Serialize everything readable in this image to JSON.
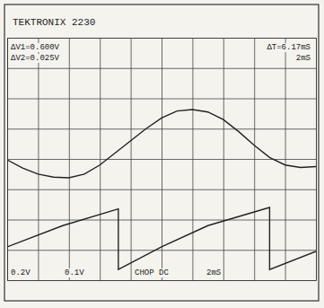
{
  "chart_data": {
    "type": "line",
    "title": "TEKTRONIX 2230",
    "annotations": [
      "ΔV1=0.600V",
      "ΔV2=0.025V",
      "ΔT=6.17mS",
      "2mS",
      "0.2V",
      "0.1V",
      "CHOP DC",
      "2mS"
    ],
    "xlim": [
      0,
      10
    ],
    "ylim": [
      0,
      8
    ],
    "xticks": [
      0,
      1,
      2,
      3,
      4,
      5,
      6,
      7,
      8,
      9,
      10
    ],
    "yticks": [
      0,
      1,
      2,
      3,
      4,
      5,
      6,
      7,
      8
    ],
    "grid": true,
    "tick_labels": false,
    "series": [
      {
        "color": "#222222",
        "line_style": "solid",
        "x": [
          0,
          0.5,
          1,
          1.5,
          2,
          2.5,
          3,
          3.5,
          4,
          4.5,
          5,
          5.5,
          6,
          6.5,
          7,
          7.5,
          8,
          8.5,
          9,
          9.5,
          10
        ],
        "values": [
          3.97,
          3.7,
          3.5,
          3.4,
          3.38,
          3.5,
          3.8,
          4.2,
          4.6,
          5.0,
          5.35,
          5.58,
          5.63,
          5.55,
          5.3,
          4.9,
          4.45,
          4.05,
          3.8,
          3.72,
          3.75
        ]
      },
      {
        "color": "#222222",
        "line_style": "solid",
        "x": [
          0,
          1.8,
          3.6,
          3.6,
          5.0,
          6.5,
          8.5,
          8.5,
          10
        ],
        "values": [
          1.1,
          1.8,
          2.35,
          0.35,
          1.1,
          1.8,
          2.4,
          0.35,
          0.95
        ]
      }
    ]
  }
}
